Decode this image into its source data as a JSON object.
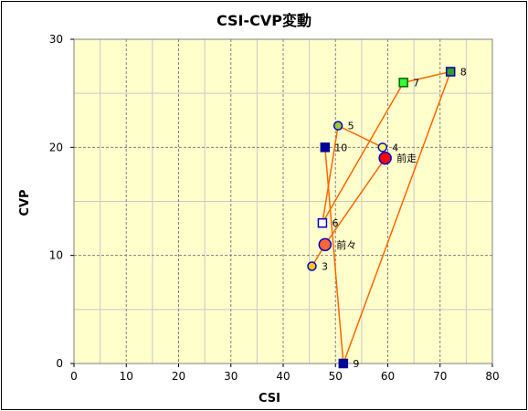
{
  "chart_data": {
    "type": "scatter",
    "title": "CSI-CVP変動",
    "xlabel": "CSI",
    "ylabel": "CVP",
    "xlim": [
      0,
      80
    ],
    "ylim": [
      0,
      30
    ],
    "xticks": [
      "0",
      "10",
      "20",
      "30",
      "40",
      "50",
      "60",
      "70",
      "80"
    ],
    "yticks": [
      "0",
      "10",
      "20",
      "30"
    ],
    "grid": true,
    "plot_background": "#ffffcc",
    "line_color": "#ff6600",
    "path_order": [
      "3",
      "前々",
      "前走",
      "4",
      "5",
      "6",
      "7",
      "8",
      "9",
      "10"
    ],
    "points": [
      {
        "label": "3",
        "x": 45.5,
        "y": 9,
        "marker": "circle",
        "size": "small",
        "fill": "#ffcc00",
        "stroke": "#0000cc"
      },
      {
        "label": "前々",
        "x": 48,
        "y": 11,
        "marker": "circle",
        "size": "large",
        "fill": "#ff6633",
        "stroke": "#0000cc"
      },
      {
        "label": "前走",
        "x": 59.5,
        "y": 19,
        "marker": "circle",
        "size": "large",
        "fill": "#ff0000",
        "stroke": "#0000cc"
      },
      {
        "label": "4",
        "x": 59,
        "y": 20,
        "marker": "circle",
        "size": "small",
        "fill": "#ffff66",
        "stroke": "#0000cc"
      },
      {
        "label": "5",
        "x": 50.5,
        "y": 22,
        "marker": "circle",
        "size": "small",
        "fill": "#99cc33",
        "stroke": "#0000cc"
      },
      {
        "label": "6",
        "x": 47.5,
        "y": 13,
        "marker": "square",
        "size": "small",
        "fill": "#ffffff",
        "stroke": "#0000cc"
      },
      {
        "label": "7",
        "x": 63,
        "y": 26,
        "marker": "square",
        "size": "small",
        "fill": "#33ff33",
        "stroke": "#006600"
      },
      {
        "label": "8",
        "x": 72,
        "y": 27,
        "marker": "square",
        "size": "small",
        "fill": "#339933",
        "stroke": "#000099"
      },
      {
        "label": "9",
        "x": 51.5,
        "y": 0,
        "marker": "square",
        "size": "small",
        "fill": "#000099",
        "stroke": "#000099"
      },
      {
        "label": "10",
        "x": 48,
        "y": 20,
        "marker": "square",
        "size": "small",
        "fill": "#000099",
        "stroke": "#000099"
      }
    ]
  }
}
